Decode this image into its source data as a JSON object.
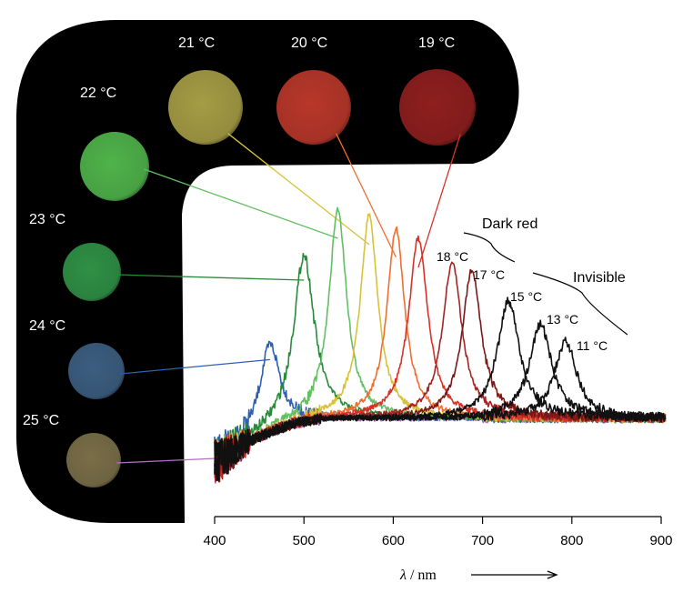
{
  "chart_data": {
    "type": "line",
    "xlabel_var": "λ",
    "xlabel_sep": " / ",
    "xlabel_unit": "nm",
    "xlim": [
      400,
      900
    ],
    "x_ticks": [
      "400",
      "500",
      "600",
      "700",
      "800",
      "900"
    ],
    "series": [
      {
        "temperature": "25 °C",
        "color": "#b070c0",
        "peak_nm": null,
        "peak_height": 0,
        "width_nm": 0,
        "photo_color": "#7a6e48"
      },
      {
        "temperature": "24 °C",
        "color": "#2e5fb5",
        "peak_nm": 462,
        "peak_height": 0.42,
        "width_nm": 14,
        "photo_color": "#3c5e80"
      },
      {
        "temperature": "23 °C",
        "color": "#2a8a3a",
        "peak_nm": 500,
        "peak_height": 0.8,
        "width_nm": 14,
        "photo_color": "#2f9045"
      },
      {
        "temperature": "22 °C",
        "color": "#62bf62",
        "peak_nm": 538,
        "peak_height": 1.0,
        "width_nm": 12,
        "photo_color": "#4fb34a"
      },
      {
        "temperature": "21 °C",
        "color": "#d8c23a",
        "peak_nm": 573,
        "peak_height": 0.97,
        "width_nm": 12,
        "photo_color": "#a59c45"
      },
      {
        "temperature": "20 °C",
        "color": "#ee7030",
        "peak_nm": 603,
        "peak_height": 0.91,
        "width_nm": 12,
        "photo_color": "#b8372a"
      },
      {
        "temperature": "19 °C",
        "color": "#d83228",
        "peak_nm": 628,
        "peak_height": 0.86,
        "width_nm": 13,
        "photo_color": "#8e1f1e"
      },
      {
        "temperature": "18 °C",
        "color": "#a82222",
        "peak_nm": 666,
        "peak_height": 0.75,
        "width_nm": 13,
        "photo_color": null
      },
      {
        "temperature": "17 °C",
        "color": "#7a1818",
        "peak_nm": 688,
        "peak_height": 0.71,
        "width_nm": 13,
        "photo_color": null
      },
      {
        "temperature": "15 °C",
        "color": "#111111",
        "peak_nm": 729,
        "peak_height": 0.56,
        "width_nm": 15,
        "photo_color": null
      },
      {
        "temperature": "13 °C",
        "color": "#111111",
        "peak_nm": 765,
        "peak_height": 0.45,
        "width_nm": 15,
        "photo_color": null
      },
      {
        "temperature": "11 °C",
        "color": "#111111",
        "peak_nm": 793,
        "peak_height": 0.37,
        "width_nm": 15,
        "photo_color": null
      }
    ],
    "annotations": {
      "dark_red": "Dark red",
      "invisible": "Invisible"
    }
  }
}
